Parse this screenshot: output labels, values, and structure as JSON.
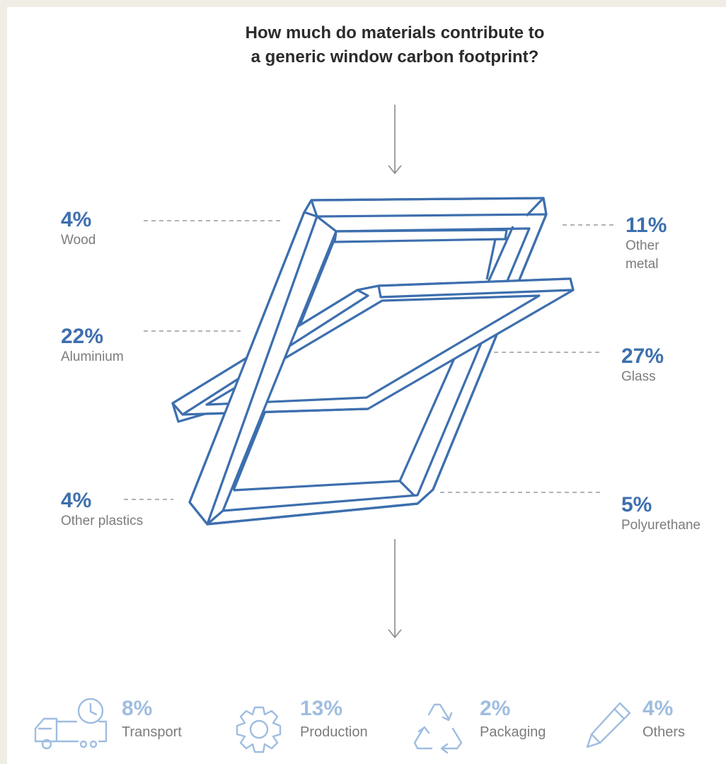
{
  "title": {
    "line1": "How much do materials contribute to",
    "line2": "a generic window carbon footprint?"
  },
  "materials": [
    {
      "key": "wood",
      "percent": "4%",
      "name": "Wood"
    },
    {
      "key": "other-metal",
      "percent": "11%",
      "name_line1": "Other",
      "name_line2": "metal"
    },
    {
      "key": "aluminium",
      "percent": "22%",
      "name": "Aluminium"
    },
    {
      "key": "glass",
      "percent": "27%",
      "name": "Glass"
    },
    {
      "key": "other-plastics",
      "percent": "4%",
      "name": "Other plastics"
    },
    {
      "key": "polyurethane",
      "percent": "5%",
      "name": "Polyurethane"
    }
  ],
  "other_contributions": [
    {
      "key": "transport",
      "percent": "8%",
      "name": "Transport",
      "icon": "truck-clock-icon"
    },
    {
      "key": "production",
      "percent": "13%",
      "name": "Production",
      "icon": "gear-icon"
    },
    {
      "key": "packaging",
      "percent": "2%",
      "name": "Packaging",
      "icon": "recycle-icon"
    },
    {
      "key": "others",
      "percent": "4%",
      "name": "Others",
      "icon": "pencil-icon"
    }
  ],
  "colors": {
    "primary_blue": "#3d6fae",
    "light_blue": "#9fbde0",
    "gray_text": "#7c7c7c",
    "title_text": "#2b2b2b",
    "background": "#efede4"
  }
}
